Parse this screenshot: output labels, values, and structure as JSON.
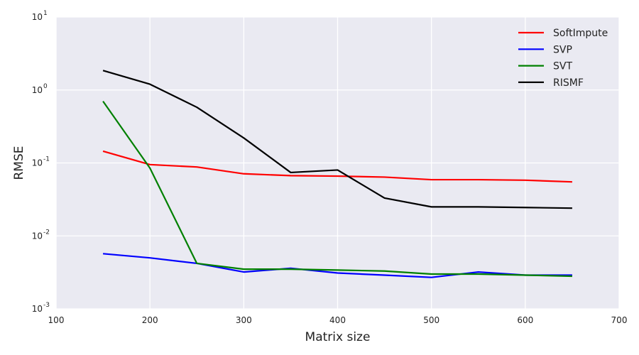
{
  "chart_data": {
    "type": "line",
    "xlabel": "Matrix size",
    "ylabel": "RMSE",
    "xlim": [
      100,
      700
    ],
    "ylim": [
      0.001,
      10
    ],
    "yscale": "log",
    "grid": true,
    "legend_position": "top-right",
    "x_ticks": [
      "100",
      "200",
      "300",
      "400",
      "500",
      "600",
      "700"
    ],
    "y_ticks": [
      {
        "value": 0.001,
        "base": "10",
        "exp": "-3"
      },
      {
        "value": 0.01,
        "base": "10",
        "exp": "-2"
      },
      {
        "value": 0.1,
        "base": "10",
        "exp": "-1"
      },
      {
        "value": 1,
        "base": "10",
        "exp": "0"
      },
      {
        "value": 10,
        "base": "10",
        "exp": "1"
      }
    ],
    "x": [
      150,
      200,
      250,
      300,
      350,
      400,
      450,
      500,
      550,
      600,
      650
    ],
    "series": [
      {
        "name": "SoftImpute",
        "color": "#ff0000",
        "values": [
          0.145,
          0.095,
          0.088,
          0.071,
          0.067,
          0.066,
          0.064,
          0.059,
          0.059,
          0.058,
          0.055
        ]
      },
      {
        "name": "SVP",
        "color": "#0000ff",
        "values": [
          0.0057,
          0.005,
          0.0042,
          0.0032,
          0.0036,
          0.0031,
          0.0029,
          0.0027,
          0.0032,
          0.0029,
          0.0029
        ]
      },
      {
        "name": "SVT",
        "color": "#008000",
        "values": [
          0.7,
          0.085,
          0.0042,
          0.0035,
          0.0035,
          0.0034,
          0.0033,
          0.003,
          0.003,
          0.0029,
          0.0028
        ]
      },
      {
        "name": "RISMF",
        "color": "#000000",
        "values": [
          1.85,
          1.2,
          0.58,
          0.22,
          0.074,
          0.08,
          0.033,
          0.025,
          0.025,
          0.0245,
          0.024
        ]
      }
    ]
  }
}
